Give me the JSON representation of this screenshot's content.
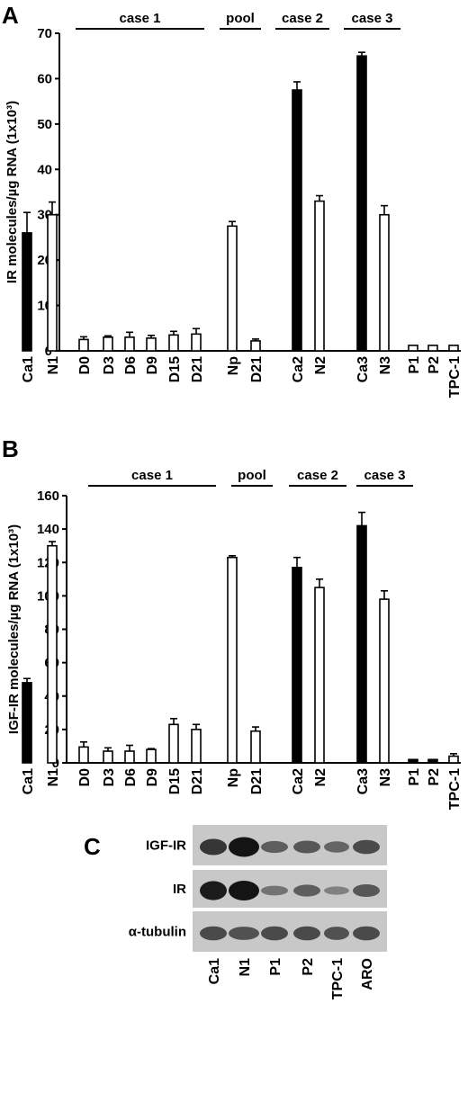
{
  "chart_data": [
    {
      "panel": "A",
      "type": "bar",
      "ylabel": "IR molecules/µg RNA (1x10³)",
      "ylim": [
        0,
        70
      ],
      "yticks": [
        0,
        10,
        20,
        30,
        40,
        50,
        60,
        70
      ],
      "groups": [
        {
          "label": "case 1",
          "categories": [
            "Ca1",
            "N1",
            "D0",
            "D3",
            "D6",
            "D9",
            "D15",
            "D21"
          ]
        },
        {
          "label": "pool",
          "categories": [
            "Np",
            "D21"
          ]
        },
        {
          "label": "case 2",
          "categories": [
            "Ca2",
            "N2"
          ]
        },
        {
          "label": "case 3",
          "categories": [
            "Ca3",
            "N3"
          ]
        }
      ],
      "categories": [
        "Ca1",
        "N1",
        "D0",
        "D3",
        "D6",
        "D9",
        "D15",
        "D21",
        "Np",
        "D21",
        "Ca2",
        "N2",
        "Ca3",
        "N3",
        "P1",
        "P2",
        "TPC-1"
      ],
      "values": [
        26,
        30,
        2.5,
        3,
        3,
        2.8,
        3.5,
        3.7,
        27.5,
        2.2,
        57.5,
        33,
        65,
        30,
        1.2,
        1.2,
        1.2
      ],
      "errors": [
        4.5,
        2.8,
        0.6,
        0.3,
        1.1,
        0.6,
        0.8,
        1.2,
        1.0,
        0.4,
        1.8,
        1.2,
        0.8,
        2.0,
        0,
        0,
        0
      ],
      "filled": [
        true,
        false,
        false,
        false,
        false,
        false,
        false,
        false,
        false,
        false,
        true,
        false,
        true,
        false,
        false,
        false,
        false
      ],
      "legend": null
    },
    {
      "panel": "B",
      "type": "bar",
      "ylabel": "IGF-IR molecules/µg RNA (1x10³)",
      "ylim": [
        0,
        160
      ],
      "yticks": [
        0,
        20,
        40,
        60,
        80,
        100,
        120,
        140,
        160
      ],
      "groups": [
        {
          "label": "case 1",
          "categories": [
            "Ca1",
            "N1",
            "D0",
            "D3",
            "D6",
            "D9",
            "D15",
            "D21"
          ]
        },
        {
          "label": "pool",
          "categories": [
            "Np",
            "D21"
          ]
        },
        {
          "label": "case 2",
          "categories": [
            "Ca2",
            "N2"
          ]
        },
        {
          "label": "case 3",
          "categories": [
            "Ca3",
            "N3"
          ]
        }
      ],
      "categories": [
        "Ca1",
        "N1",
        "D0",
        "D3",
        "D6",
        "D9",
        "D15",
        "D21",
        "Np",
        "D21",
        "Ca2",
        "N2",
        "Ca3",
        "N3",
        "P1",
        "P2",
        "TPC-1"
      ],
      "values": [
        48,
        130,
        9.5,
        7,
        7,
        8,
        23,
        20,
        123,
        19,
        117,
        105,
        142,
        98,
        2,
        2,
        4
      ],
      "errors": [
        2.5,
        2.5,
        3,
        2,
        3.5,
        0.5,
        3.5,
        3,
        1,
        2.5,
        6,
        5,
        8,
        5,
        0,
        0,
        1.5
      ],
      "filled": [
        true,
        false,
        false,
        false,
        false,
        false,
        false,
        false,
        false,
        false,
        true,
        false,
        true,
        false,
        true,
        true,
        false
      ],
      "legend": null
    }
  ],
  "blot": {
    "panel": "C",
    "rows": [
      "IGF-IR",
      "IR",
      "α-tubulin"
    ],
    "lanes": [
      "Ca1",
      "N1",
      "P1",
      "P2",
      "TPC-1",
      "ARO"
    ],
    "intensity": [
      [
        0.75,
        1.0,
        0.45,
        0.5,
        0.4,
        0.6
      ],
      [
        0.95,
        1.0,
        0.3,
        0.45,
        0.2,
        0.5
      ],
      [
        0.6,
        0.55,
        0.6,
        0.6,
        0.55,
        0.6
      ]
    ],
    "colors": {
      "background": "#c8c8c8",
      "band": "#141414"
    }
  }
}
